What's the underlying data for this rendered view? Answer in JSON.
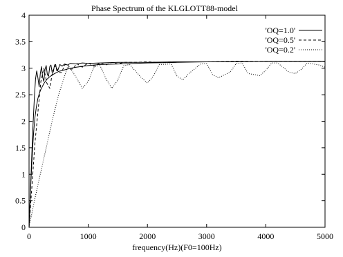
{
  "chart_data": {
    "type": "line",
    "title": "Phase Spectrum of the KLGLOTT88-model",
    "xlabel": "frequency(Hz)(F0=100Hz)",
    "ylabel": "",
    "xlim": [
      0,
      5000
    ],
    "ylim": [
      0,
      4
    ],
    "x_ticks": [
      "0",
      "1000",
      "2000",
      "3000",
      "4000",
      "5000"
    ],
    "y_ticks": [
      "0",
      "0.5",
      "1",
      "1.5",
      "2",
      "2.5",
      "3",
      "3.5",
      "4"
    ],
    "grid": false,
    "legend_position": "top-right",
    "series": [
      {
        "name": "'OQ=1.0'",
        "style": "solid",
        "x": [
          0,
          20,
          40,
          60,
          80,
          100,
          125,
          150,
          175,
          200,
          250,
          300,
          350,
          400,
          450,
          500,
          600,
          700,
          800,
          1000,
          1200,
          1500,
          2000,
          2500,
          3000,
          3500,
          4000,
          4500,
          5000
        ],
        "y": [
          0,
          0.55,
          1.05,
          1.48,
          1.82,
          2.08,
          2.28,
          2.43,
          2.53,
          2.6,
          2.71,
          2.79,
          2.84,
          2.88,
          2.91,
          2.94,
          2.97,
          3.0,
          3.02,
          3.05,
          3.07,
          3.08,
          3.1,
          3.11,
          3.12,
          3.12,
          3.13,
          3.13,
          3.13
        ]
      },
      {
        "name": "'OQ=1.0'",
        "style": "solid",
        "x": [
          0,
          30,
          60,
          90,
          110,
          130,
          150,
          170,
          190,
          210,
          230,
          250,
          270,
          290,
          310,
          330,
          350,
          370,
          390,
          410,
          430,
          450,
          470,
          490,
          520,
          560,
          600,
          650,
          700,
          800,
          900,
          1000,
          1200,
          1500,
          2000,
          2500,
          3000,
          4000,
          5000
        ],
        "y": [
          0,
          0.9,
          1.75,
          2.45,
          2.8,
          2.95,
          2.82,
          2.65,
          2.9,
          3.03,
          2.83,
          2.75,
          2.98,
          3.05,
          2.88,
          2.85,
          3.03,
          3.06,
          2.92,
          2.93,
          3.06,
          3.07,
          2.95,
          2.97,
          3.07,
          3.04,
          3.08,
          3.06,
          3.09,
          3.08,
          3.1,
          3.09,
          3.1,
          3.11,
          3.11,
          3.12,
          3.12,
          3.13,
          3.13
        ]
      },
      {
        "name": "'OQ=0.5'",
        "style": "dashed",
        "x": [
          0,
          100,
          200,
          250,
          300,
          350,
          400,
          450,
          500,
          550,
          600,
          650,
          700,
          750,
          800,
          900,
          1000,
          1100,
          1200,
          1300,
          1400,
          1500,
          1600,
          1800,
          2000,
          2200,
          2500,
          3000,
          3500,
          4000,
          4500,
          5000
        ],
        "y": [
          0,
          1.6,
          2.75,
          3.0,
          2.72,
          2.62,
          2.95,
          3.05,
          2.92,
          2.92,
          3.06,
          3.08,
          2.98,
          2.99,
          3.09,
          3.02,
          3.1,
          3.04,
          3.1,
          3.06,
          3.11,
          3.08,
          3.11,
          3.11,
          3.12,
          3.11,
          3.12,
          3.12,
          3.13,
          3.13,
          3.13,
          3.13
        ]
      },
      {
        "name": "'OQ=0.2'",
        "style": "dotted",
        "x": [
          0,
          100,
          200,
          300,
          400,
          500,
          600,
          650,
          700,
          800,
          900,
          1000,
          1100,
          1200,
          1300,
          1400,
          1500,
          1600,
          1700,
          1900,
          2000,
          2100,
          2200,
          2400,
          2500,
          2600,
          2700,
          2900,
          3000,
          3100,
          3200,
          3400,
          3500,
          3600,
          3700,
          3900,
          4000,
          4100,
          4200,
          4400,
          4500,
          4600,
          4700,
          4900,
          5000
        ],
        "y": [
          0,
          0.55,
          1.05,
          1.55,
          2.05,
          2.5,
          2.85,
          3.02,
          3.0,
          2.82,
          2.62,
          2.75,
          3.03,
          3.05,
          2.8,
          2.62,
          2.78,
          3.05,
          3.07,
          2.82,
          2.72,
          2.85,
          3.07,
          3.08,
          2.85,
          2.78,
          2.9,
          3.08,
          3.09,
          2.88,
          2.82,
          2.93,
          3.09,
          3.1,
          2.9,
          2.86,
          2.96,
          3.1,
          3.1,
          2.92,
          2.9,
          2.98,
          3.1,
          3.06,
          3.02
        ]
      }
    ]
  }
}
